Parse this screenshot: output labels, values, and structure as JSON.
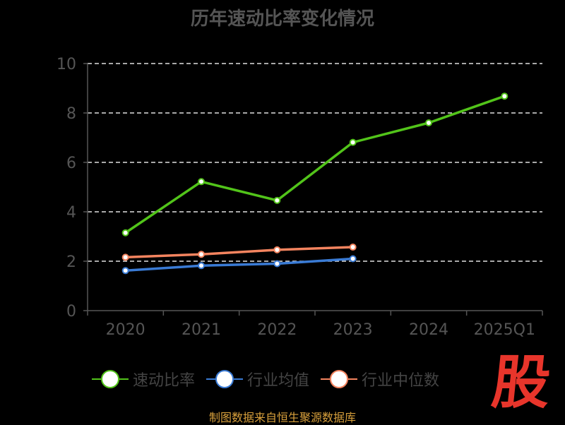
{
  "page": {
    "source_text": "制图数据来自恒生聚源数据库",
    "logo_text": "股"
  },
  "chart_data": {
    "type": "line",
    "title": "历年速动比率变化情况",
    "xlabel": "",
    "ylabel": "",
    "categories": [
      "2020",
      "2021",
      "2022",
      "2023",
      "2024",
      "2025Q1"
    ],
    "ylim": [
      0,
      10
    ],
    "yticks": [
      0,
      2,
      4,
      6,
      8,
      10
    ],
    "grid": true,
    "legend_position": "bottom",
    "series": [
      {
        "name": "速动比率",
        "color": "#52c41a",
        "values": [
          3.15,
          5.22,
          4.46,
          6.81,
          7.6,
          8.68
        ]
      },
      {
        "name": "行业均值",
        "color": "#3a7bd5",
        "values": [
          1.62,
          1.82,
          1.9,
          2.1,
          null,
          null
        ]
      },
      {
        "name": "行业中位数",
        "color": "#f4845f",
        "values": [
          2.16,
          2.28,
          2.46,
          2.57,
          null,
          null
        ]
      }
    ]
  }
}
